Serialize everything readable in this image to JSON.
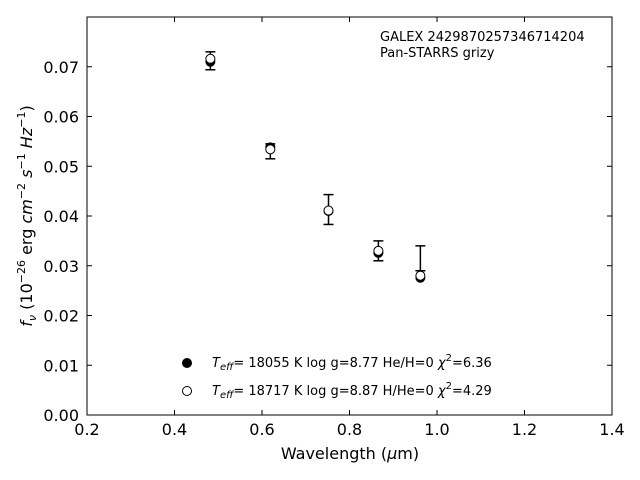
{
  "chart_data": {
    "type": "scatter",
    "xlabel": "Wavelength (μm)",
    "ylabel": "f_ν (10^-26 erg cm^-2 s^-1 Hz^-1)",
    "xlim": [
      0.2,
      1.4
    ],
    "ylim": [
      0.0,
      0.08
    ],
    "x_ticks": [
      "0.2",
      "0.4",
      "0.6",
      "0.8",
      "1.0",
      "1.2",
      "1.4"
    ],
    "y_ticks": [
      "0.00",
      "0.01",
      "0.02",
      "0.03",
      "0.04",
      "0.05",
      "0.06",
      "0.07"
    ],
    "grid": false,
    "legend_position": "lower-center",
    "annotations": [
      "GALEX 2429870257346714204",
      "Pan-STARRS grizy"
    ],
    "observed": {
      "x": [
        0.482,
        0.619,
        0.752,
        0.866,
        0.962
      ],
      "y": [
        0.0712,
        0.053,
        0.0413,
        0.033,
        0.0315
      ],
      "yerr": [
        0.0018,
        0.0015,
        0.003,
        0.002,
        0.0025
      ]
    },
    "series": [
      {
        "name": "T_eff= 18055 K  log g=8.77  He/H=0  χ²=6.36",
        "marker": "filled-circle",
        "x": [
          0.482,
          0.619,
          0.752,
          0.866,
          0.962
        ],
        "y": [
          0.071,
          0.0538,
          0.041,
          0.0326,
          0.0276
        ]
      },
      {
        "name": "T_eff= 18717 K  log g=8.87  H/He=0  χ²=4.29",
        "marker": "open-circle",
        "x": [
          0.482,
          0.619,
          0.752,
          0.866,
          0.962
        ],
        "y": [
          0.0716,
          0.0534,
          0.0411,
          0.033,
          0.028
        ]
      }
    ]
  }
}
